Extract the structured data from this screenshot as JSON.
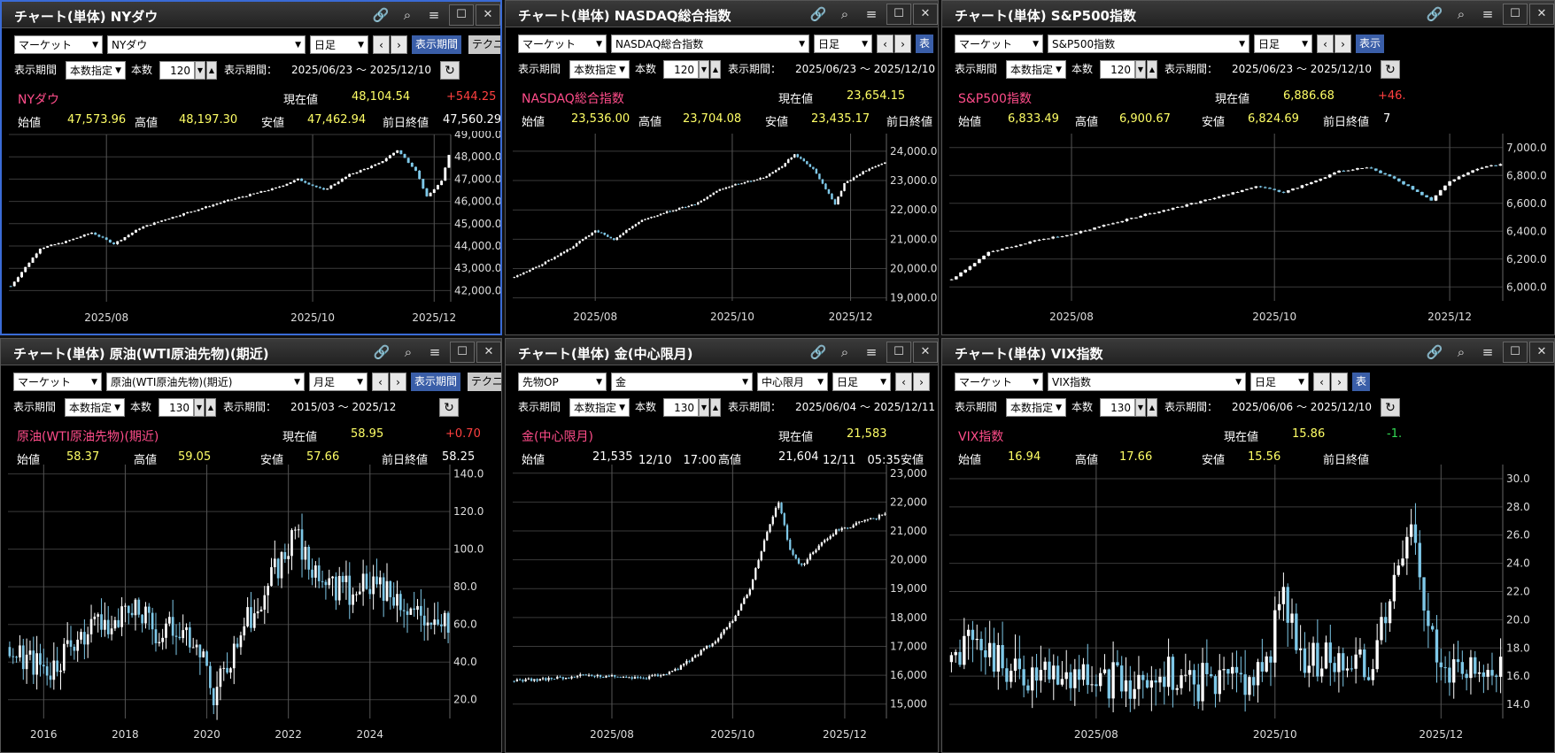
{
  "panels": [
    {
      "title": "チャート(単体) NYダウ",
      "market": "マーケット",
      "instrument": "NYダウ",
      "period": "日足",
      "display_btn": "表示期間",
      "tech_btn": "テクニ",
      "period_label": "表示期間",
      "period_mode": "本数指定",
      "count_label": "本数",
      "count": "120",
      "range_label": "表示期間：",
      "range": "2025/06/23 ～ 2025/12/10",
      "name": "NYダウ",
      "cur_label": "現在値",
      "cur": "48,104.54",
      "chg": "+544.25",
      "open_label": "始値",
      "open": "47,573.96",
      "high_label": "高値",
      "high": "48,197.30",
      "low_label": "安値",
      "low": "47,462.94",
      "prev_label": "前日終値",
      "prev": "47,560.29"
    },
    {
      "title": "チャート(単体) NASDAQ総合指数",
      "market": "マーケット",
      "instrument": "NASDAQ総合指数",
      "period": "日足",
      "display_btn": "表",
      "period_label": "表示期間",
      "period_mode": "本数指定",
      "count_label": "本数",
      "count": "120",
      "range_label": "表示期間：",
      "range": "2025/06/23 ～ 2025/12/10",
      "name": "NASDAQ総合指数",
      "cur_label": "現在値",
      "cur": "23,654.15",
      "chg": "+",
      "open_label": "始値",
      "open": "23,536.00",
      "high_label": "高値",
      "high": "23,704.08",
      "low_label": "安値",
      "low": "23,435.17",
      "prev_label": "前日終値",
      "prev": ""
    },
    {
      "title": "チャート(単体) S&P500指数",
      "market": "マーケット",
      "instrument": "S&P500指数",
      "period": "日足",
      "display_btn": "表示",
      "period_label": "表示期間",
      "period_mode": "本数指定",
      "count_label": "本数",
      "count": "120",
      "range_label": "表示期間：",
      "range": "2025/06/23 ～ 2025/12/10",
      "name": "S&P500指数",
      "cur_label": "現在値",
      "cur": "6,886.68",
      "chg": "+46.",
      "open_label": "始値",
      "open": "6,833.49",
      "high_label": "高値",
      "high": "6,900.67",
      "low_label": "安値",
      "low": "6,824.69",
      "prev_label": "前日終値",
      "prev": "7"
    },
    {
      "title": "チャート(単体) 原油(WTI原油先物)(期近)",
      "market": "マーケット",
      "instrument": "原油(WTI原油先物)(期近)",
      "period": "月足",
      "display_btn": "表示期間",
      "tech_btn": "テクニ",
      "period_label": "表示期間",
      "period_mode": "本数指定",
      "count_label": "本数",
      "count": "130",
      "range_label": "表示期間：",
      "range": "2015/03 ～ 2025/12",
      "name": "原油(WTI原油先物)(期近)",
      "cur_label": "現在値",
      "cur": "58.95",
      "chg": "+0.70",
      "open_label": "始値",
      "open": "58.37",
      "high_label": "高値",
      "high": "59.05",
      "low_label": "安値",
      "low": "57.66",
      "prev_label": "前日終値",
      "prev": "58.25"
    },
    {
      "title": "チャート(単体) 金(中心限月)",
      "market": "先物OP",
      "instrument": "金",
      "contract": "中心限月",
      "period": "日足",
      "period_label": "表示期間",
      "period_mode": "本数指定",
      "count_label": "本数",
      "count": "130",
      "range_label": "表示期間：",
      "range": "2025/06/04 ～ 2025/12/11",
      "name": "金(中心限月)",
      "cur_label": "現在値",
      "cur": "21,583",
      "open_label": "始値",
      "open": "21,535",
      "open_time": "12/10　17:00",
      "high_label": "高値",
      "high": "21,604",
      "high_time": "12/11　05:35",
      "low_label": "安値"
    },
    {
      "title": "チャート(単体) VIX指数",
      "market": "マーケット",
      "instrument": "VIX指数",
      "period": "日足",
      "display_btn": "表",
      "period_label": "表示期間",
      "period_mode": "本数指定",
      "count_label": "本数",
      "count": "130",
      "range_label": "表示期間：",
      "range": "2025/06/06 ～ 2025/12/10",
      "name": "VIX指数",
      "cur_label": "現在値",
      "cur": "15.86",
      "chg": "-1.",
      "open_label": "始値",
      "open": "16.94",
      "high_label": "高値",
      "high": "17.66",
      "low_label": "安値",
      "low": "15.56",
      "prev_label": "前日終値",
      "prev": ""
    }
  ],
  "colors": {
    "up": "#ffffff",
    "down": "#7ec8e8",
    "grid": "#3a3a3a",
    "vline": "#555555",
    "active_border": "#3a6bd6",
    "name": "#ff4d8a",
    "value": "#ffff66",
    "change_up": "#ff4040",
    "change_down": "#33dd55"
  },
  "chart_data": [
    {
      "type": "candlestick",
      "ylim": [
        41500,
        49000
      ],
      "yticks": [
        42000,
        43000,
        44000,
        45000,
        46000,
        47000,
        48000,
        49000
      ],
      "ytick_labels": [
        "42,000.0",
        "43,000.0",
        "44,000.0",
        "45,000.0",
        "46,000.0",
        "47,000.0",
        "48,000.0",
        "49,000.0"
      ],
      "xtick_labels": [
        "2025/08",
        "2025/10",
        "2025/12"
      ],
      "xtick_pos": [
        26,
        82,
        115
      ],
      "n": 120,
      "path": [
        [
          0,
          42200
        ],
        [
          8,
          43900
        ],
        [
          15,
          44200
        ],
        [
          22,
          44600
        ],
        [
          28,
          44100
        ],
        [
          35,
          44800
        ],
        [
          42,
          45200
        ],
        [
          50,
          45600
        ],
        [
          58,
          46000
        ],
        [
          65,
          46300
        ],
        [
          72,
          46600
        ],
        [
          78,
          47000
        ],
        [
          85,
          46500
        ],
        [
          92,
          47200
        ],
        [
          100,
          47700
        ],
        [
          105,
          48300
        ],
        [
          110,
          47400
        ],
        [
          113,
          46200
        ],
        [
          117,
          46900
        ],
        [
          119,
          48100
        ]
      ],
      "vol": 0.004
    },
    {
      "type": "candlestick",
      "ylim": [
        18900,
        24600
      ],
      "yticks": [
        19000,
        20000,
        21000,
        22000,
        23000,
        24000
      ],
      "ytick_labels": [
        "19,000.0",
        "20,000.0",
        "21,000.0",
        "22,000.0",
        "23,000.0",
        "24,000.0"
      ],
      "xtick_labels": [
        "2025/08",
        "2025/10",
        "2025/12"
      ],
      "xtick_pos": [
        26,
        70,
        108
      ],
      "n": 120,
      "path": [
        [
          0,
          19700
        ],
        [
          8,
          20100
        ],
        [
          18,
          20700
        ],
        [
          26,
          21300
        ],
        [
          32,
          21000
        ],
        [
          40,
          21600
        ],
        [
          48,
          21900
        ],
        [
          58,
          22200
        ],
        [
          66,
          22700
        ],
        [
          72,
          22900
        ],
        [
          80,
          23100
        ],
        [
          86,
          23500
        ],
        [
          90,
          23900
        ],
        [
          96,
          23400
        ],
        [
          100,
          22700
        ],
        [
          103,
          22200
        ],
        [
          106,
          22900
        ],
        [
          112,
          23300
        ],
        [
          119,
          23600
        ]
      ],
      "vol": 0.004
    },
    {
      "type": "candlestick",
      "ylim": [
        5900,
        7100
      ],
      "yticks": [
        6000,
        6200,
        6400,
        6600,
        6800,
        7000
      ],
      "ytick_labels": [
        "6,000.0",
        "6,200.0",
        "6,400.0",
        "6,600.0",
        "6,800.0",
        "7,000.0"
      ],
      "xtick_labels": [
        "2025/08",
        "2025/10",
        "2025/12"
      ],
      "xtick_pos": [
        26,
        70,
        108
      ],
      "n": 120,
      "path": [
        [
          0,
          6050
        ],
        [
          8,
          6250
        ],
        [
          18,
          6330
        ],
        [
          26,
          6380
        ],
        [
          34,
          6450
        ],
        [
          42,
          6520
        ],
        [
          50,
          6580
        ],
        [
          58,
          6650
        ],
        [
          66,
          6720
        ],
        [
          72,
          6680
        ],
        [
          78,
          6750
        ],
        [
          84,
          6830
        ],
        [
          90,
          6860
        ],
        [
          96,
          6780
        ],
        [
          100,
          6700
        ],
        [
          104,
          6620
        ],
        [
          108,
          6760
        ],
        [
          114,
          6850
        ],
        [
          119,
          6880
        ]
      ],
      "vol": 0.004
    },
    {
      "type": "candlestick",
      "ylim": [
        10,
        145
      ],
      "yticks": [
        20,
        40,
        60,
        80,
        100,
        120,
        140
      ],
      "ytick_labels": [
        "20.0",
        "40.0",
        "60.0",
        "80.0",
        "100.0",
        "120.0",
        "140.0"
      ],
      "xtick_labels": [
        "2016",
        "2018",
        "2020",
        "2022",
        "2024"
      ],
      "xtick_pos": [
        10,
        34,
        58,
        82,
        106
      ],
      "n": 130,
      "path": [
        [
          0,
          48
        ],
        [
          6,
          42
        ],
        [
          12,
          35
        ],
        [
          20,
          50
        ],
        [
          28,
          62
        ],
        [
          38,
          70
        ],
        [
          44,
          55
        ],
        [
          50,
          58
        ],
        [
          56,
          50
        ],
        [
          60,
          25
        ],
        [
          64,
          38
        ],
        [
          70,
          62
        ],
        [
          76,
          80
        ],
        [
          84,
          112
        ],
        [
          88,
          90
        ],
        [
          94,
          80
        ],
        [
          100,
          78
        ],
        [
          108,
          82
        ],
        [
          114,
          76
        ],
        [
          120,
          70
        ],
        [
          126,
          62
        ],
        [
          129,
          59
        ]
      ],
      "vol": 0.06
    },
    {
      "type": "candlestick",
      "ylim": [
        14500,
        23300
      ],
      "yticks": [
        15000,
        16000,
        17000,
        18000,
        19000,
        20000,
        21000,
        22000,
        23000
      ],
      "ytick_labels": [
        "15,000",
        "16,000",
        "17,000",
        "18,000",
        "19,000",
        "20,000",
        "21,000",
        "22,000",
        "23,000"
      ],
      "xtick_labels": [
        "2025/08",
        "2025/10",
        "2025/12"
      ],
      "xtick_pos": [
        34,
        76,
        115
      ],
      "n": 130,
      "path": [
        [
          0,
          15800
        ],
        [
          15,
          15900
        ],
        [
          25,
          16000
        ],
        [
          35,
          15950
        ],
        [
          45,
          15900
        ],
        [
          55,
          16100
        ],
        [
          62,
          16600
        ],
        [
          70,
          17200
        ],
        [
          76,
          17900
        ],
        [
          82,
          19000
        ],
        [
          88,
          21000
        ],
        [
          92,
          22000
        ],
        [
          96,
          20300
        ],
        [
          100,
          19800
        ],
        [
          106,
          20500
        ],
        [
          112,
          21000
        ],
        [
          118,
          21200
        ],
        [
          124,
          21400
        ],
        [
          129,
          21580
        ]
      ],
      "vol": 0.006
    },
    {
      "type": "candlestick",
      "ylim": [
        13000,
        31000
      ],
      "yticks": [
        14,
        16,
        18,
        20,
        22,
        24,
        26,
        28,
        30
      ],
      "ytick_labels": [
        "14.0",
        "16.0",
        "18.0",
        "20.0",
        "22.0",
        "24.0",
        "26.0",
        "28.0",
        "30.0"
      ],
      "xtick_labels": [
        "2025/08",
        "2025/10",
        "2025/12"
      ],
      "xtick_pos": [
        34,
        76,
        115
      ],
      "n": 130,
      "path": [
        [
          0,
          17
        ],
        [
          4,
          19
        ],
        [
          8,
          18
        ],
        [
          12,
          17
        ],
        [
          20,
          16
        ],
        [
          30,
          16.5
        ],
        [
          40,
          15.5
        ],
        [
          50,
          16
        ],
        [
          60,
          15.5
        ],
        [
          68,
          16
        ],
        [
          74,
          16.5
        ],
        [
          78,
          22
        ],
        [
          80,
          19
        ],
        [
          84,
          17
        ],
        [
          92,
          17.5
        ],
        [
          98,
          17
        ],
        [
          104,
          22
        ],
        [
          108,
          26
        ],
        [
          112,
          19
        ],
        [
          116,
          17
        ],
        [
          122,
          16
        ],
        [
          129,
          16
        ]
      ],
      "vol": 0.08,
      "scale": 1000
    }
  ]
}
